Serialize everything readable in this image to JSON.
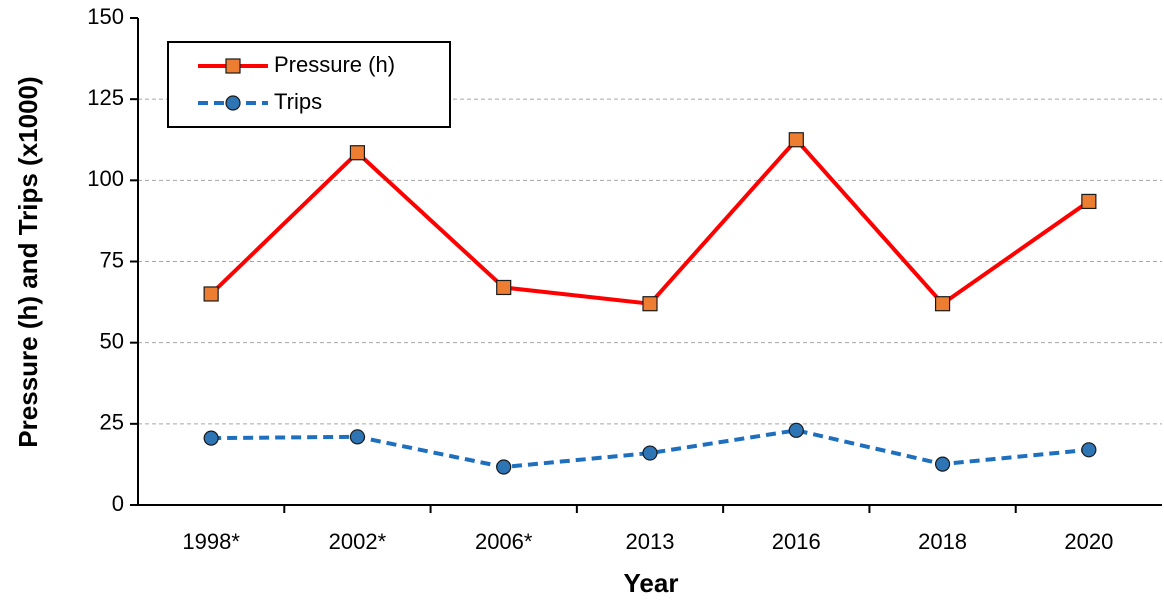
{
  "chart_data": {
    "type": "line",
    "x_label": "Year",
    "y_label": "Pressure (h) and Trips (x1000)",
    "categories": [
      "1998*",
      "2002*",
      "2006*",
      "2013",
      "2016",
      "2018",
      "2020"
    ],
    "series": [
      {
        "name": "Pressure (h)",
        "color": "#ff0000",
        "marker_color": "#ed7d31",
        "marker": "square",
        "dashed": false,
        "values": [
          65,
          108.5,
          67,
          62,
          112.5,
          62,
          93.5
        ]
      },
      {
        "name": "Trips",
        "color": "#1f6fbf",
        "marker_color": "#2e75b6",
        "marker": "circle",
        "dashed": true,
        "values": [
          20.6,
          21,
          11.7,
          16,
          23,
          12.6,
          17
        ]
      }
    ],
    "ylim": [
      0,
      150
    ],
    "yticks": [
      0,
      25,
      50,
      75,
      100,
      125,
      150
    ],
    "grid": true,
    "legend": "upper left"
  }
}
